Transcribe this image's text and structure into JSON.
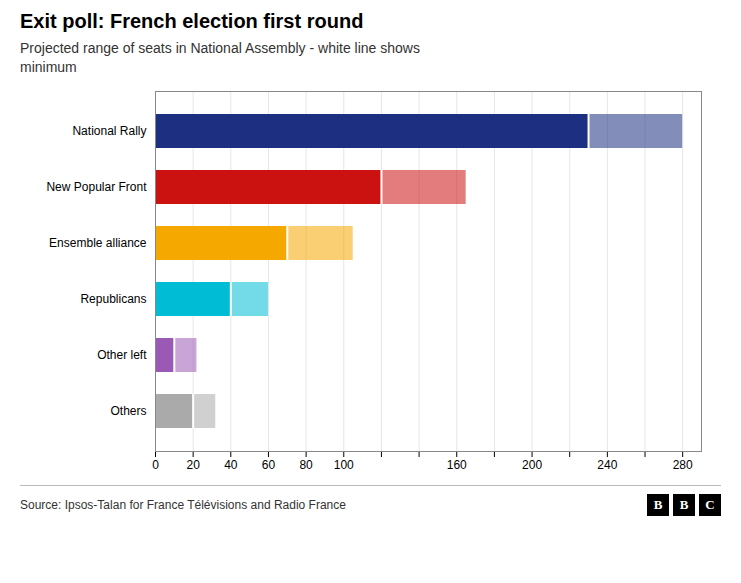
{
  "chart_data": {
    "type": "bar",
    "orientation": "horizontal",
    "title": "Exit poll: French election first round",
    "subtitle": "Projected range of seats in National Assembly - white line shows\nminimum",
    "source": "Source: Ipsos-Talan for France Télévisions and Radio France",
    "logo": "BBC",
    "categories": [
      "National Rally",
      "New Popular Front",
      "Ensemble alliance",
      "Republicans",
      "Other left",
      "Others"
    ],
    "values": [
      280,
      165,
      105,
      60,
      22,
      32
    ],
    "min_values": [
      230,
      120,
      70,
      40,
      10,
      20
    ],
    "colors": [
      "#1c2f80",
      "#cc1111",
      "#f5a800",
      "#00bcd4",
      "#9b59b6",
      "#aaaaaa"
    ],
    "xlim": [
      0,
      290
    ],
    "xticks": [
      0,
      20,
      40,
      60,
      80,
      100,
      {
        "value": 120,
        "label": ""
      },
      {
        "value": 140,
        "label": ""
      },
      160,
      {
        "value": 180,
        "label": ""
      },
      200,
      {
        "value": 220,
        "label": ""
      },
      240,
      {
        "value": 260,
        "label": ""
      },
      280
    ],
    "grid": true
  }
}
